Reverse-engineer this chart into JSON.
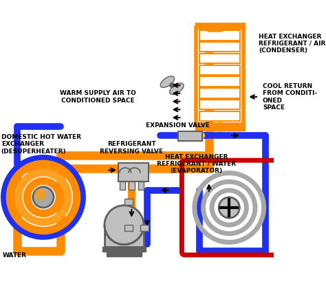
{
  "bg_color": "#ffffff",
  "orange": "#FF8C00",
  "orange2": "#FFA020",
  "blue": "#2030EE",
  "red": "#CC0000",
  "yellow": "#FFD700",
  "gray": "#A8A8A8",
  "dark_gray": "#606060",
  "light_gray": "#C0C0C0",
  "black": "#000000",
  "labels": {
    "heat_exchanger_air": "HEAT EXCHANGER\nREFRIGERANT / AIR\n(CONDENSER)",
    "warm_supply": "WARM SUPPLY AIR TO\nCONDITIONED SPACE",
    "cool_return": "COOL RETURN\nFROM CONDITI-\nONED\nSPACE",
    "expansion_valve": "EXPANSION VALVE",
    "refrigerant_reversing": "REFRIGERANT\nREVERSING VALVE",
    "domestic_hot_water": "DOMESTIC HOT WATER\nEXCHANGER\n(DESUPERHEATER)",
    "heat_exchanger_water": "HEAT EXCHANGER\nREFRIGERANT / WATER\n(EVAPORATOR)",
    "water": "WATER"
  },
  "figsize": [
    4.74,
    4.16
  ],
  "dpi": 100
}
